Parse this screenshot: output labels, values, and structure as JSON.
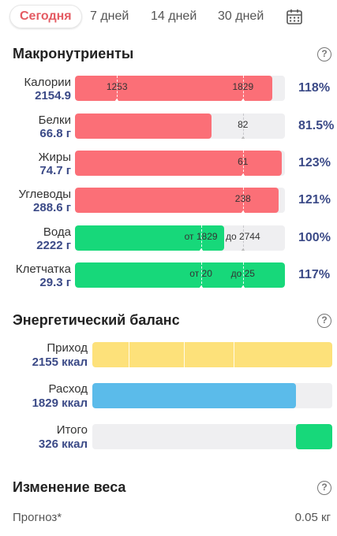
{
  "tabs": [
    {
      "label": "Сегодня",
      "active": true
    },
    {
      "label": "7 дней",
      "active": false
    },
    {
      "label": "14 дней",
      "active": false
    },
    {
      "label": "30 дней",
      "active": false
    }
  ],
  "colors": {
    "over_target": "#fb6f77",
    "on_target": "#17d87a",
    "income": "#fde17a",
    "expense": "#5bbbea",
    "value_text": "#3b4a87",
    "active_tab": "#e45b63"
  },
  "macros": {
    "title": "Макронутриенты",
    "rows": [
      {
        "label": "Калории",
        "value": "2154.9",
        "fill_fraction": 0.94,
        "color": "red",
        "markers": [
          {
            "label": "1253",
            "at": 0.2
          },
          {
            "label": "1829",
            "at": 0.8
          }
        ],
        "percent": "118%"
      },
      {
        "label": "Белки",
        "value": "66.8 г",
        "fill_fraction": 0.65,
        "color": "red",
        "markers": [
          {
            "label": "82",
            "at": 0.8,
            "outside": true
          }
        ],
        "percent": "81.5%"
      },
      {
        "label": "Жиры",
        "value": "74.7 г",
        "fill_fraction": 0.985,
        "color": "red",
        "markers": [
          {
            "label": "61",
            "at": 0.8
          }
        ],
        "percent": "123%"
      },
      {
        "label": "Углеводы",
        "value": "288.6 г",
        "fill_fraction": 0.97,
        "color": "red",
        "markers": [
          {
            "label": "238",
            "at": 0.8
          }
        ],
        "percent": "121%"
      },
      {
        "label": "Вода",
        "value": "2222 г",
        "fill_fraction": 0.71,
        "color": "green",
        "markers": [
          {
            "label": "от 1829",
            "at": 0.6
          },
          {
            "label": "до 2744",
            "at": 0.8,
            "outside": true
          }
        ],
        "percent": "100%"
      },
      {
        "label": "Клетчатка",
        "value": "29.3 г",
        "fill_fraction": 1.0,
        "color": "green",
        "markers": [
          {
            "label": "от 20",
            "at": 0.6
          },
          {
            "label": "до 25",
            "at": 0.8
          }
        ],
        "percent": "117%"
      }
    ]
  },
  "energy": {
    "title": "Энергетический баланс",
    "rows": [
      {
        "label": "Приход",
        "value": "2155 ккал",
        "fill_fraction": 1.0,
        "color": "yellow",
        "dividers": [
          0.15,
          0.38,
          0.59
        ]
      },
      {
        "label": "Расход",
        "value": "1829 ккал",
        "fill_fraction": 0.85,
        "color": "blue"
      },
      {
        "label": "Итого",
        "value": "326 ккал",
        "fill_fraction": 0.15,
        "color": "green",
        "align": "right"
      }
    ]
  },
  "weight": {
    "title": "Изменение веса",
    "forecast_label": "Прогноз*",
    "forecast_value": "0.05 кг"
  },
  "icons": {
    "calendar": "calendar-icon",
    "help": "question-circle-icon"
  }
}
